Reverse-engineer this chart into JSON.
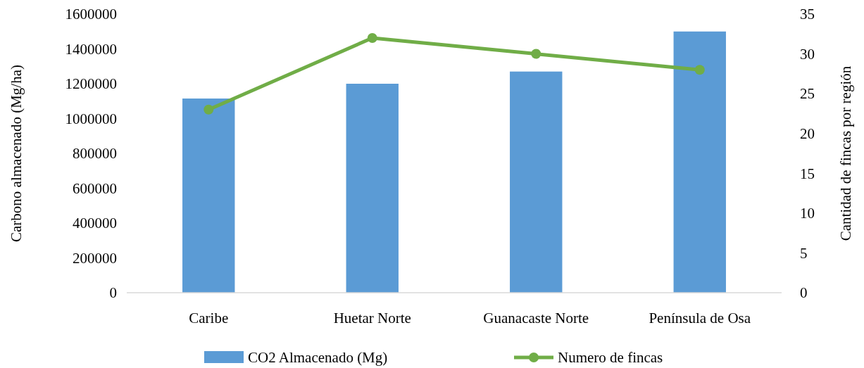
{
  "chart_data": {
    "type": "bar",
    "categories": [
      "Caribe",
      "Huetar Norte",
      "Guanacaste Norte",
      "Península de Osa"
    ],
    "series": [
      {
        "name": "CO2 Almacenado (Mg)",
        "color": "#5b9bd5",
        "values": [
          1115000,
          1200000,
          1270000,
          1500000
        ]
      },
      {
        "name": "Numero de fincas",
        "type": "line",
        "axis": "y2",
        "color": "#70ad47",
        "values": [
          23,
          32,
          30,
          28
        ],
        "marker": "circle"
      }
    ],
    "ylabel": "Carbono almacenado (Mg/ha)",
    "y2label": "Cantidad de fincas por región",
    "ylim": [
      0,
      1600000
    ],
    "yticks": [
      0,
      200000,
      400000,
      600000,
      800000,
      1000000,
      1200000,
      1400000,
      1600000
    ],
    "y2lim": [
      0,
      35
    ],
    "y2ticks": [
      0,
      5,
      10,
      15,
      20,
      25,
      30,
      35
    ],
    "grid": false,
    "legend": "bottom"
  }
}
